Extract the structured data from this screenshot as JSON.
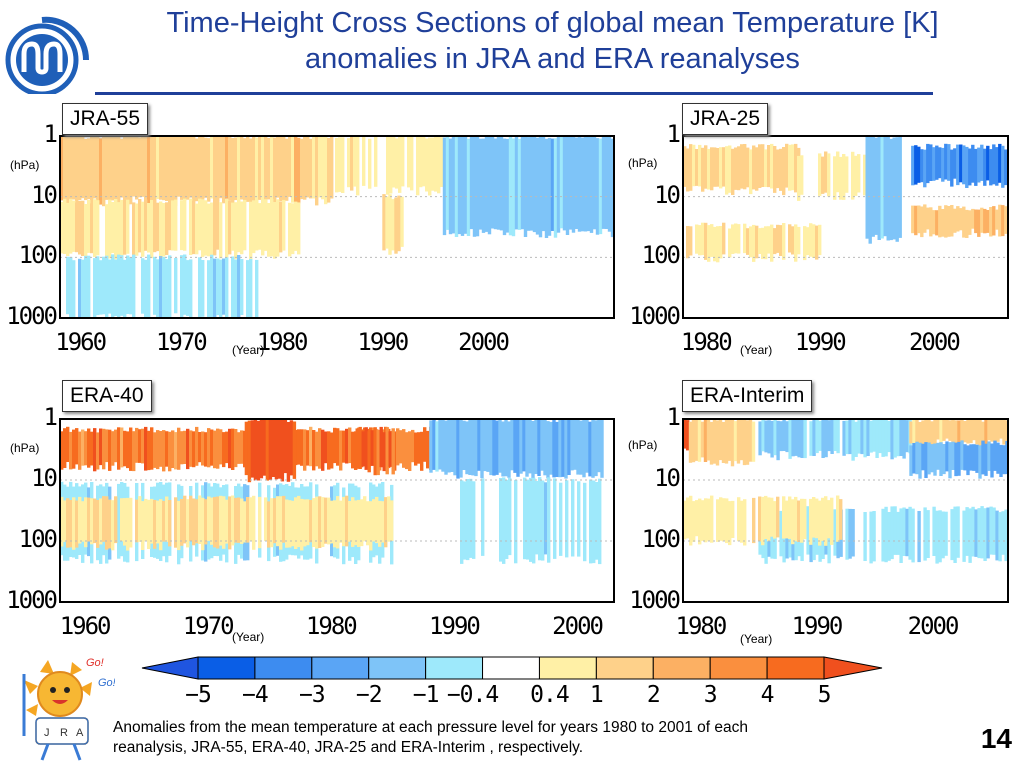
{
  "header": {
    "title_line1": "Time-Height Cross Sections of global mean Temperature [K]",
    "title_line2": "anomalies in JRA and ERA reanalyses"
  },
  "logo": {
    "icon": "jma-logo-icon",
    "color": "#1f5fb8"
  },
  "mascot": {
    "icon": "jra-mascot-icon",
    "go1": "Go!",
    "go2": "Go!",
    "letters": [
      "J",
      "R",
      "A"
    ]
  },
  "units": {
    "pressure": "(hPa)",
    "time": "(Year)"
  },
  "chart_data": [
    {
      "type": "heatmap",
      "title": "JRA-55",
      "xlabel": "(Year)",
      "ylabel": "(hPa)",
      "x_range": [
        1958,
        2013
      ],
      "xticks": [
        {
          "value": 1960,
          "label": "1960"
        },
        {
          "value": 1970,
          "label": "1970"
        },
        {
          "value": 1980,
          "label": "1980"
        },
        {
          "value": 1990,
          "label": "1990"
        },
        {
          "value": 2000,
          "label": "2000"
        }
      ],
      "y_range": [
        1000,
        1
      ],
      "y_scale": "log",
      "yticks": [
        {
          "value": 1,
          "label": "1"
        },
        {
          "value": 10,
          "label": "10"
        },
        {
          "value": 100,
          "label": "100"
        },
        {
          "value": 1000,
          "label": "1000"
        }
      ],
      "features": [
        {
          "from": 1958,
          "to": 1985,
          "top": 1,
          "bottom": 12,
          "anomaly": 1.5
        },
        {
          "from": 1958,
          "to": 1982,
          "top": 12,
          "bottom": 90,
          "anomaly": 0.7
        },
        {
          "from": 1958,
          "to": 1978,
          "top": 100,
          "bottom": 1000,
          "anomaly": -0.6
        },
        {
          "from": 1985,
          "to": 1996,
          "top": 1,
          "bottom": 8,
          "anomaly": 0.6
        },
        {
          "from": 1996,
          "to": 2013,
          "top": 1,
          "bottom": 40,
          "anomaly": -1.3
        },
        {
          "from": 1990,
          "to": 1992,
          "top": 10,
          "bottom": 80,
          "anomaly": 1.0
        }
      ]
    },
    {
      "type": "heatmap",
      "title": "JRA-25",
      "xlabel": "(Year)",
      "ylabel": "(hPa)",
      "x_range": [
        1978,
        2006.5
      ],
      "xticks": [
        {
          "value": 1980,
          "label": "1980"
        },
        {
          "value": 1990,
          "label": "1990"
        },
        {
          "value": 2000,
          "label": "2000"
        }
      ],
      "y_range": [
        1000,
        1
      ],
      "y_scale": "log",
      "yticks": [
        {
          "value": 1,
          "label": "1"
        },
        {
          "value": 10,
          "label": "10"
        },
        {
          "value": 100,
          "label": "100"
        },
        {
          "value": 1000,
          "label": "1000"
        }
      ],
      "features": [
        {
          "from": 1978,
          "to": 1988,
          "top": 1.5,
          "bottom": 8,
          "anomaly": 1.2
        },
        {
          "from": 1988,
          "to": 1994,
          "top": 2,
          "bottom": 10,
          "anomaly": 0.6
        },
        {
          "from": 1994,
          "to": 1997,
          "top": 1,
          "bottom": 50,
          "anomaly": -1.5
        },
        {
          "from": 1998,
          "to": 2006.5,
          "top": 1.5,
          "bottom": 6,
          "anomaly": -3.5
        },
        {
          "from": 1998,
          "to": 2006.5,
          "top": 15,
          "bottom": 40,
          "anomaly": 1.8
        },
        {
          "from": 1978,
          "to": 1990,
          "top": 30,
          "bottom": 100,
          "anomaly": 0.7
        }
      ]
    },
    {
      "type": "heatmap",
      "title": "ERA-40",
      "xlabel": "(Year)",
      "ylabel": "(hPa)",
      "x_range": [
        1958,
        2003
      ],
      "xticks": [
        {
          "value": 1960,
          "label": "1960"
        },
        {
          "value": 1970,
          "label": "1970"
        },
        {
          "value": 1980,
          "label": "1980"
        },
        {
          "value": 1990,
          "label": "1990"
        },
        {
          "value": 2000,
          "label": "2000"
        }
      ],
      "y_range": [
        1000,
        1
      ],
      "y_scale": "log",
      "yticks": [
        {
          "value": 1,
          "label": "1"
        },
        {
          "value": 10,
          "label": "10"
        },
        {
          "value": 100,
          "label": "100"
        },
        {
          "value": 1000,
          "label": "1000"
        }
      ],
      "features": [
        {
          "from": 1958,
          "to": 1988,
          "top": 1.5,
          "bottom": 6,
          "anomaly": 4.0
        },
        {
          "from": 1973,
          "to": 1977,
          "top": 1,
          "bottom": 9,
          "anomaly": 5.5
        },
        {
          "from": 1982,
          "to": 1985,
          "top": 1.5,
          "bottom": 7,
          "anomaly": 4.5
        },
        {
          "from": 1958,
          "to": 1985,
          "top": 12,
          "bottom": 200,
          "anomaly": -0.6
        },
        {
          "from": 1958,
          "to": 1985,
          "top": 20,
          "bottom": 120,
          "anomaly": 0.8
        },
        {
          "from": 1988,
          "to": 2002,
          "top": 1,
          "bottom": 8,
          "anomaly": -1.8
        },
        {
          "from": 1990,
          "to": 2002,
          "top": 10,
          "bottom": 200,
          "anomaly": -0.6
        }
      ]
    },
    {
      "type": "heatmap",
      "title": "ERA-Interim",
      "xlabel": "(Year)",
      "ylabel": "(hPa)",
      "x_range": [
        1978.5,
        2006.5
      ],
      "xticks": [
        {
          "value": 1980,
          "label": "1980"
        },
        {
          "value": 1990,
          "label": "1990"
        },
        {
          "value": 2000,
          "label": "2000"
        }
      ],
      "y_range": [
        1000,
        1
      ],
      "y_scale": "log",
      "yticks": [
        {
          "value": 1,
          "label": "1"
        },
        {
          "value": 10,
          "label": "10"
        },
        {
          "value": 100,
          "label": "100"
        },
        {
          "value": 1000,
          "label": "1000"
        }
      ],
      "features": [
        {
          "from": 1978.5,
          "to": 1979,
          "top": 1,
          "bottom": 3,
          "anomaly": 5.5
        },
        {
          "from": 1979,
          "to": 1984.5,
          "top": 1,
          "bottom": 5,
          "anomaly": 1.5
        },
        {
          "from": 1985,
          "to": 1998,
          "top": 1,
          "bottom": 4,
          "anomaly": -1.0
        },
        {
          "from": 1998,
          "to": 2006.5,
          "top": 1,
          "bottom": 2.5,
          "anomaly": 1.5
        },
        {
          "from": 1998,
          "to": 2006.5,
          "top": 2.5,
          "bottom": 8,
          "anomaly": -2.2
        },
        {
          "from": 1985,
          "to": 2006.5,
          "top": 30,
          "bottom": 200,
          "anomaly": -0.7
        },
        {
          "from": 1978.5,
          "to": 1992,
          "top": 20,
          "bottom": 100,
          "anomaly": 0.7
        }
      ]
    }
  ],
  "colorbar": {
    "labels": [
      "−5",
      "−4",
      "−3",
      "−2",
      "−1",
      "−0.4",
      "0.4",
      "1",
      "2",
      "3",
      "4",
      "5"
    ],
    "below_color": "#1f55e0",
    "above_color": "#f0501e",
    "colors": [
      "#0a5ee6",
      "#3d8cf0",
      "#5aa5f5",
      "#7ec4f8",
      "#9ee9fb",
      "#ffffff",
      "#fff0a6",
      "#fed18a",
      "#fcb063",
      "#fa8f3e",
      "#f76b1f"
    ]
  },
  "caption": {
    "line1": "Anomalies from  the mean temperature at each pressure level for years 1980 to 2001 of each",
    "line2": "reanalysis, JRA-55, ERA-40, JRA-25 and ERA-Interim , respectively."
  },
  "page_number": "14"
}
